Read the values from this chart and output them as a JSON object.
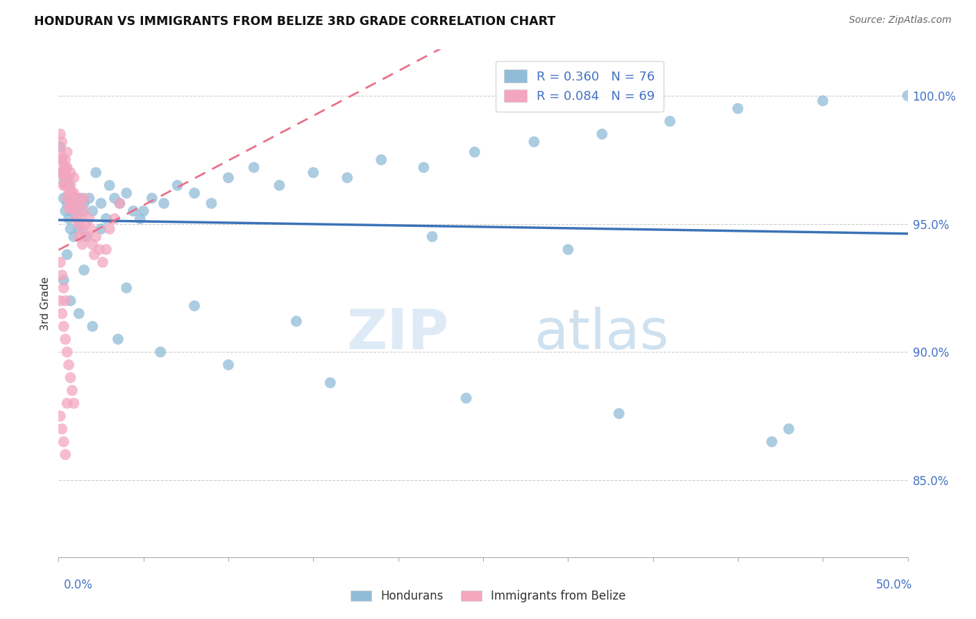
{
  "title": "HONDURAN VS IMMIGRANTS FROM BELIZE 3RD GRADE CORRELATION CHART",
  "source": "Source: ZipAtlas.com",
  "ylabel": "3rd Grade",
  "x_min": 0.0,
  "x_max": 0.5,
  "y_min": 0.82,
  "y_max": 1.018,
  "y_ticks": [
    0.85,
    0.9,
    0.95,
    1.0
  ],
  "y_tick_labels": [
    "85.0%",
    "90.0%",
    "95.0%",
    "100.0%"
  ],
  "blue_R": 0.36,
  "blue_N": 76,
  "pink_R": 0.084,
  "pink_N": 69,
  "blue_color": "#91bcd8",
  "pink_color": "#f4a6bf",
  "blue_line_color": "#3b72b8",
  "pink_line_color": "#e8708a",
  "legend_label_blue": "Hondurans",
  "legend_label_pink": "Immigrants from Belize",
  "watermark_zip": "ZIP",
  "watermark_atlas": "atlas",
  "blue_scatter_x": [
    0.001,
    0.002,
    0.002,
    0.003,
    0.003,
    0.004,
    0.004,
    0.005,
    0.005,
    0.006,
    0.006,
    0.007,
    0.007,
    0.008,
    0.008,
    0.009,
    0.01,
    0.011,
    0.012,
    0.013,
    0.014,
    0.015,
    0.016,
    0.018,
    0.02,
    0.022,
    0.025,
    0.028,
    0.03,
    0.033,
    0.036,
    0.04,
    0.044,
    0.048,
    0.055,
    0.062,
    0.07,
    0.08,
    0.09,
    0.1,
    0.115,
    0.13,
    0.15,
    0.17,
    0.19,
    0.215,
    0.245,
    0.28,
    0.32,
    0.36,
    0.4,
    0.45,
    0.5,
    0.003,
    0.007,
    0.012,
    0.02,
    0.035,
    0.06,
    0.1,
    0.16,
    0.24,
    0.33,
    0.43,
    0.005,
    0.015,
    0.04,
    0.08,
    0.14,
    0.22,
    0.3,
    0.42,
    0.002,
    0.01,
    0.025,
    0.05
  ],
  "blue_scatter_y": [
    0.98,
    0.975,
    0.97,
    0.966,
    0.96,
    0.972,
    0.955,
    0.968,
    0.958,
    0.965,
    0.952,
    0.962,
    0.948,
    0.96,
    0.955,
    0.945,
    0.958,
    0.952,
    0.948,
    0.96,
    0.955,
    0.958,
    0.945,
    0.96,
    0.955,
    0.97,
    0.958,
    0.952,
    0.965,
    0.96,
    0.958,
    0.962,
    0.955,
    0.952,
    0.96,
    0.958,
    0.965,
    0.962,
    0.958,
    0.968,
    0.972,
    0.965,
    0.97,
    0.968,
    0.975,
    0.972,
    0.978,
    0.982,
    0.985,
    0.99,
    0.995,
    0.998,
    1.0,
    0.928,
    0.92,
    0.915,
    0.91,
    0.905,
    0.9,
    0.895,
    0.888,
    0.882,
    0.876,
    0.87,
    0.938,
    0.932,
    0.925,
    0.918,
    0.912,
    0.945,
    0.94,
    0.865,
    0.975,
    0.96,
    0.948,
    0.955
  ],
  "pink_scatter_x": [
    0.001,
    0.001,
    0.002,
    0.002,
    0.002,
    0.003,
    0.003,
    0.003,
    0.004,
    0.004,
    0.004,
    0.005,
    0.005,
    0.005,
    0.006,
    0.006,
    0.006,
    0.007,
    0.007,
    0.007,
    0.008,
    0.008,
    0.009,
    0.009,
    0.01,
    0.01,
    0.011,
    0.011,
    0.012,
    0.012,
    0.013,
    0.013,
    0.014,
    0.014,
    0.015,
    0.015,
    0.016,
    0.017,
    0.018,
    0.019,
    0.02,
    0.021,
    0.022,
    0.024,
    0.026,
    0.028,
    0.03,
    0.033,
    0.036,
    0.001,
    0.002,
    0.003,
    0.004,
    0.005,
    0.006,
    0.007,
    0.008,
    0.009,
    0.001,
    0.002,
    0.003,
    0.004,
    0.002,
    0.003,
    0.001,
    0.002,
    0.003,
    0.004,
    0.005
  ],
  "pink_scatter_y": [
    0.985,
    0.978,
    0.982,
    0.975,
    0.97,
    0.968,
    0.972,
    0.965,
    0.975,
    0.97,
    0.965,
    0.978,
    0.972,
    0.96,
    0.968,
    0.962,
    0.956,
    0.97,
    0.965,
    0.958,
    0.962,
    0.956,
    0.968,
    0.962,
    0.958,
    0.952,
    0.96,
    0.955,
    0.95,
    0.945,
    0.958,
    0.952,
    0.948,
    0.942,
    0.96,
    0.955,
    0.95,
    0.945,
    0.952,
    0.948,
    0.942,
    0.938,
    0.945,
    0.94,
    0.935,
    0.94,
    0.948,
    0.952,
    0.958,
    0.92,
    0.915,
    0.91,
    0.905,
    0.9,
    0.895,
    0.89,
    0.885,
    0.88,
    0.935,
    0.93,
    0.925,
    0.92,
    0.975,
    0.97,
    0.875,
    0.87,
    0.865,
    0.86,
    0.88
  ]
}
